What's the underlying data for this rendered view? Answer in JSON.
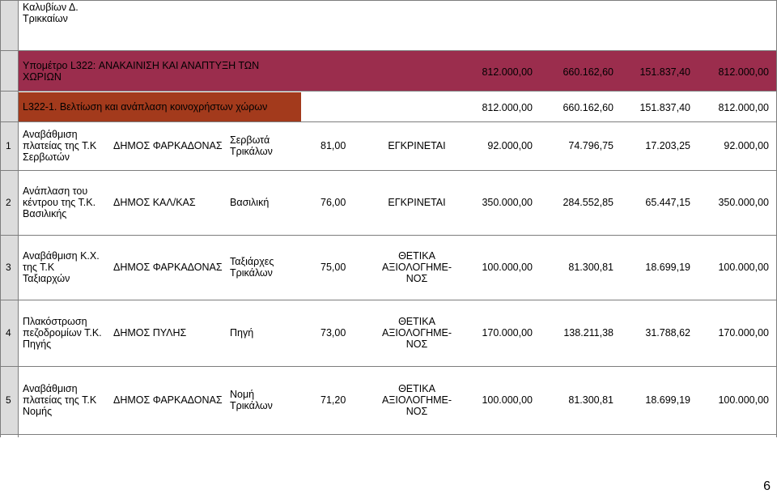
{
  "header_cell": {
    "line1": "Καλυβίων Δ.",
    "line2": "Τρικκαίων"
  },
  "measure": {
    "title_line1": "Υπομέτρο L322: ΑΝΑΚΑΙΝΙΣΗ ΚΑΙ ΑΝΑΠΤΥΞΗ ΤΩΝ",
    "title_line2": "ΧΩΡΙΩΝ",
    "total": "812.000,00",
    "public": "660.162,60",
    "private": "151.837,40",
    "approved": "812.000,00"
  },
  "action": {
    "title": "L322-1. Βελτίωση και ανάπλαση κοινοχρήστων χώρων",
    "total": "812.000,00",
    "public": "660.162,60",
    "private": "151.837,40",
    "approved": "812.000,00"
  },
  "rows": [
    {
      "idx": "1",
      "project": [
        "Αναβάθμιση",
        "πλατείας της Τ.Κ",
        "Σερβωτών"
      ],
      "beneficiary": "ΔΗΜΟΣ ΦΑΡΚΑΔΟΝΑΣ",
      "location": [
        "Σερβωτά",
        "Τρικάλων"
      ],
      "score": "81,00",
      "status": [
        "ΕΓΚΡΙΝΕΤΑΙ"
      ],
      "total": "92.000,00",
      "public": "74.796,75",
      "private": "17.203,25",
      "approved": "92.000,00"
    },
    {
      "idx": "2",
      "project": [
        "Ανάπλαση του",
        "κέντρου της Τ.Κ.",
        "Βασιλικής"
      ],
      "beneficiary": "ΔΗΜΟΣ ΚΑΛ/ΚΑΣ",
      "location": [
        "Βασιλική"
      ],
      "score": "76,00",
      "status": [
        "ΕΓΚΡΙΝΕΤΑΙ"
      ],
      "total": "350.000,00",
      "public": "284.552,85",
      "private": "65.447,15",
      "approved": "350.000,00"
    },
    {
      "idx": "3",
      "project": [
        "Αναβάθμιση Κ.Χ.",
        "της Τ.Κ",
        "Ταξιαρχών"
      ],
      "beneficiary": "ΔΗΜΟΣ ΦΑΡΚΑΔΟΝΑΣ",
      "location": [
        "Ταξιάρχες",
        "Τρικάλων"
      ],
      "score": "75,00",
      "status": [
        "ΘΕΤΙΚΑ",
        "ΑΞΙΟΛΟΓΗΜΕ-",
        "ΝΟΣ"
      ],
      "total": "100.000,00",
      "public": "81.300,81",
      "private": "18.699,19",
      "approved": "100.000,00"
    },
    {
      "idx": "4",
      "project": [
        "Πλακόστρωση",
        "πεζοδρομίων Τ.Κ.",
        "Πηγής"
      ],
      "beneficiary": "ΔΗΜΟΣ ΠΥΛΗΣ",
      "location": [
        "Πηγή"
      ],
      "score": "73,00",
      "status": [
        "ΘΕΤΙΚΑ",
        "ΑΞΙΟΛΟΓΗΜΕ-",
        "ΝΟΣ"
      ],
      "total": "170.000,00",
      "public": "138.211,38",
      "private": "31.788,62",
      "approved": "170.000,00"
    },
    {
      "idx": "5",
      "project": [
        "Αναβάθμιση",
        "πλατείας της Τ.Κ",
        "Νομής"
      ],
      "beneficiary": "ΔΗΜΟΣ ΦΑΡΚΑΔΟΝΑΣ",
      "location": [
        "Νομή",
        "Τρικάλων"
      ],
      "score": "71,20",
      "status": [
        "ΘΕΤΙΚΑ",
        "ΑΞΙΟΛΟΓΗΜΕ-",
        "ΝΟΣ"
      ],
      "total": "100.000,00",
      "public": "81.300,81",
      "private": "18.699,19",
      "approved": "100.000,00"
    }
  ],
  "page_number": "6"
}
